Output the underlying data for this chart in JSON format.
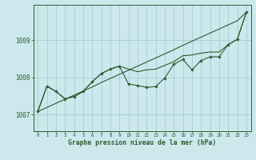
{
  "bg_color": "#cce8ed",
  "line_color": "#2d5a2d",
  "grid_color": "#a8ccd4",
  "xlabel": "Graphe pression niveau de la mer (hPa)",
  "x_ticks": [
    0,
    1,
    2,
    3,
    4,
    5,
    6,
    7,
    8,
    9,
    10,
    11,
    12,
    13,
    14,
    15,
    16,
    17,
    18,
    19,
    20,
    21,
    22,
    23
  ],
  "y_ticks": [
    1007,
    1008,
    1009
  ],
  "ylim": [
    1006.55,
    1009.95
  ],
  "xlim": [
    -0.5,
    23.5
  ],
  "line_straight": [
    1007.08,
    1007.19,
    1007.3,
    1007.41,
    1007.52,
    1007.63,
    1007.74,
    1007.86,
    1007.97,
    1008.08,
    1008.19,
    1008.3,
    1008.41,
    1008.52,
    1008.63,
    1008.74,
    1008.86,
    1008.97,
    1009.08,
    1009.19,
    1009.3,
    1009.41,
    1009.52,
    1009.75
  ],
  "line_upper": [
    1007.08,
    1007.76,
    1007.62,
    1007.42,
    1007.48,
    1007.62,
    1007.88,
    1008.1,
    1008.22,
    1008.3,
    1008.22,
    1008.15,
    1008.2,
    1008.22,
    1008.32,
    1008.42,
    1008.58,
    1008.6,
    1008.65,
    1008.68,
    1008.68,
    1008.88,
    1009.02,
    1009.75
  ],
  "line_detailed": [
    1007.08,
    1007.76,
    1007.62,
    1007.42,
    1007.48,
    1007.62,
    1007.88,
    1008.1,
    1008.22,
    1008.3,
    1007.82,
    1007.78,
    1007.73,
    1007.75,
    1007.98,
    1008.35,
    1008.48,
    1008.2,
    1008.45,
    1008.55,
    1008.55,
    1008.88,
    1009.02,
    1009.75
  ]
}
